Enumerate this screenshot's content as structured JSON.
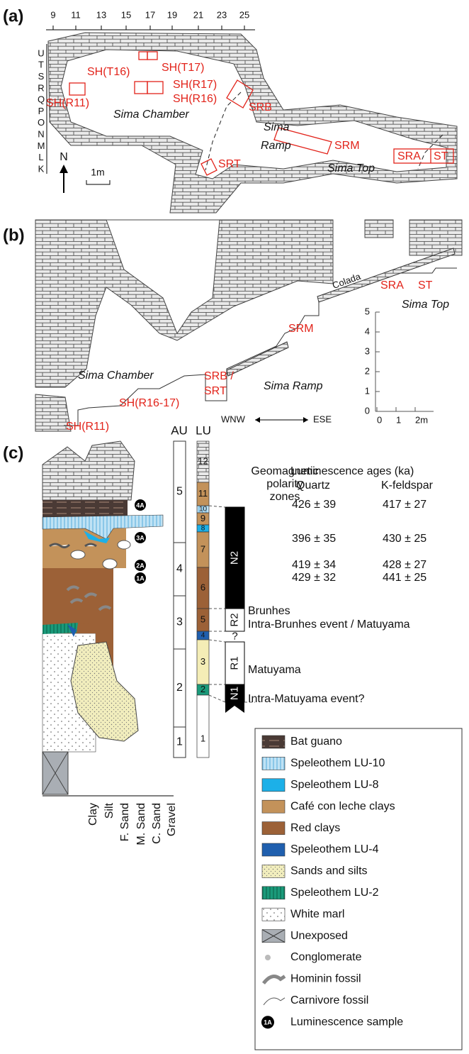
{
  "panel_a": {
    "label": "(a)",
    "grid_columns": [
      "9",
      "11",
      "13",
      "15",
      "17",
      "19",
      "21",
      "23",
      "25"
    ],
    "grid_rows": [
      "U",
      "T",
      "S",
      "R",
      "Q",
      "P",
      "O",
      "N",
      "M",
      "L",
      "K"
    ],
    "sites": [
      "SH(T16)",
      "SH(T17)",
      "SH(R17)",
      "SH(R16)",
      "SH(R11)",
      "SRB",
      "SRM",
      "SRA",
      "ST",
      "SRT"
    ],
    "areas": [
      "Sima Chamber",
      "Sima",
      "Ramp",
      "Sima Top"
    ],
    "north": "N",
    "scale": "1m"
  },
  "panel_b": {
    "label": "(b)",
    "texts": [
      "Colada",
      "SRA",
      "ST",
      "Sima Top",
      "SRM",
      "Sima Chamber",
      "SRB /",
      "SRT",
      "Sima Ramp",
      "SH(R16-17)",
      "SH(R11)"
    ],
    "direction": [
      "WNW",
      "ESE"
    ],
    "vertical_scale": [
      "0",
      "1",
      "2",
      "3",
      "4",
      "5"
    ],
    "horizontal_scale": [
      "0",
      "1",
      "2m"
    ]
  },
  "panel_c": {
    "label": "(c)",
    "au_header": "AU",
    "lu_header": "LU",
    "au_units": [
      "5",
      "4",
      "3",
      "2",
      "1"
    ],
    "lu_units": [
      "12",
      "11",
      "10",
      "9",
      "8",
      "7",
      "6",
      "5",
      "4",
      "3",
      "2",
      "1"
    ],
    "polarity_header": [
      "Geomagnetic",
      "polarity",
      "zones"
    ],
    "polarity_zones": [
      "N2",
      "R2",
      "?",
      "R1",
      "N1"
    ],
    "chrons": [
      "Brunhes",
      "Intra-Brunhes event / Matuyama",
      "Matuyama",
      "Intra-Matuyama event?"
    ],
    "ages_header": "Luminescence ages (ka)",
    "quartz_header": "Quartz",
    "kfeldspar_header": "K-feldspar",
    "ages": [
      {
        "quartz": "426 ± 39",
        "kfeldspar": "417 ± 27"
      },
      {
        "quartz": "396 ± 35",
        "kfeldspar": "430 ± 25"
      },
      {
        "quartz": "419 ± 34",
        "kfeldspar": "428 ± 27"
      },
      {
        "quartz": "429 ± 32",
        "kfeldspar": "441 ± 25"
      }
    ],
    "samples": [
      "4A",
      "3A",
      "2A",
      "1A"
    ],
    "grain_sizes": [
      "Clay",
      "Silt",
      "F. Sand",
      "M. Sand",
      "C. Sand",
      "Gravel"
    ],
    "legend": [
      "Bat guano",
      "Speleothem LU-10",
      "Speleothem LU-8",
      "Café con leche clays",
      "Red clays",
      "Speleothem LU-4",
      "Sands and silts",
      "Speleothem LU-2",
      "White marl",
      "Unexposed",
      "Conglomerate",
      "Hominin fossil",
      "Carnivore fossil",
      "Luminescence sample"
    ],
    "legend_sample_icon": "1A"
  }
}
